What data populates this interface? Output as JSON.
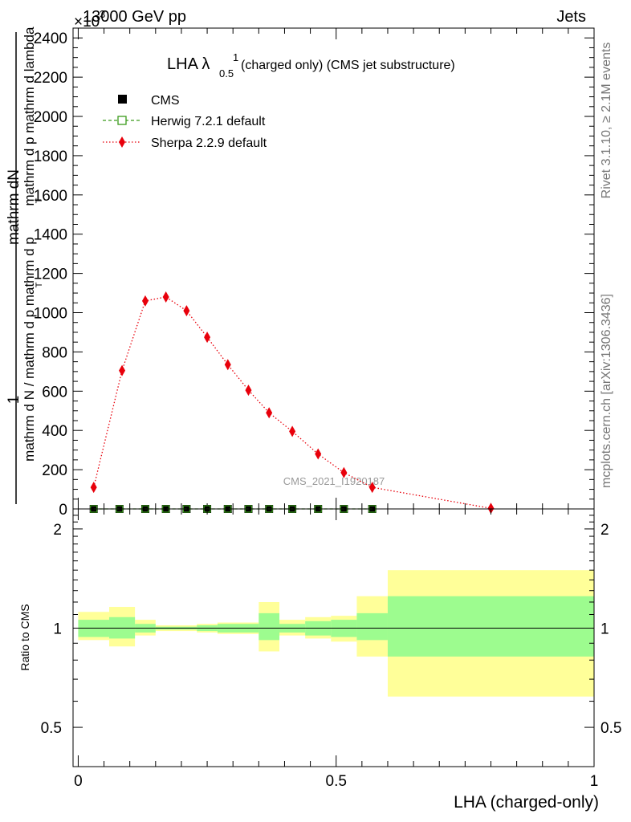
{
  "header": {
    "left": "13000 GeV pp",
    "right": "Jets",
    "exponent": "×10",
    "exponent_power": "3"
  },
  "side_labels": {
    "rivet": "Rivet 3.1.10, ≥ 2.1M events",
    "mcplots": "mcplots.cern.ch [arXiv:1306.3436]"
  },
  "watermark": "CMS_2021_I1920187",
  "chart_data": [
    {
      "type": "line",
      "title": "LHA λ",
      "title_sup": "1",
      "title_sub": "0.5",
      "title_suffix": "(charged only) (CMS jet substructure)",
      "ylabel_top": "mathrm dN",
      "ylabel_bottom": "mathrm d p mathrm d lambda",
      "ylabel_one": "1",
      "ylabel_denominator": "mathrm d N / mathrm d p mathrm d p",
      "ylabel_sub": "T",
      "ylabel_sub2": "T",
      "ylim": [
        0,
        2450
      ],
      "xlim": [
        -0.01,
        1.0
      ],
      "yticks": [
        0,
        200,
        400,
        600,
        800,
        1000,
        1200,
        1400,
        1600,
        1800,
        2000,
        2200,
        2400
      ],
      "ytick_labels": [
        "0",
        "200",
        "400",
        "600",
        "800",
        "1000",
        "1200",
        "1400",
        "1600",
        "1800",
        "2000",
        "2200",
        "2400"
      ],
      "legend_position": "top-left",
      "series": [
        {
          "name": "CMS",
          "color": "#000000",
          "marker": "square",
          "x": [
            0.03,
            0.08,
            0.13,
            0.17,
            0.21,
            0.25,
            0.29,
            0.33,
            0.37,
            0.415,
            0.465,
            0.515,
            0.57
          ],
          "y": [
            0,
            0,
            0,
            0,
            0,
            0,
            0,
            0,
            0,
            0,
            0,
            0,
            0
          ]
        },
        {
          "name": "Herwig 7.2.1 default",
          "color": "#3a9a1a",
          "marker": "open-square",
          "line": "dashed",
          "x": [
            0.03,
            0.08,
            0.13,
            0.17,
            0.21,
            0.25,
            0.29,
            0.33,
            0.37,
            0.415,
            0.465,
            0.515,
            0.57
          ],
          "y": [
            0,
            0,
            0,
            0,
            0,
            0,
            0,
            0,
            0,
            0,
            0,
            0,
            0
          ]
        },
        {
          "name": "Sherpa 2.2.9 default",
          "color": "#e8000b",
          "marker": "diamond",
          "line": "dotted",
          "x": [
            0.03,
            0.085,
            0.13,
            0.17,
            0.21,
            0.25,
            0.29,
            0.33,
            0.37,
            0.415,
            0.465,
            0.515,
            0.57,
            0.8
          ],
          "y": [
            110,
            705,
            1060,
            1080,
            1010,
            875,
            735,
            605,
            490,
            395,
            280,
            185,
            110,
            3
          ]
        }
      ]
    },
    {
      "type": "area",
      "ylabel": "Ratio to CMS",
      "xlabel": "LHA (charged-only)",
      "ylim": [
        0.38,
        2.3
      ],
      "xlim": [
        -0.01,
        1.0
      ],
      "xticks": [
        0,
        0.5,
        1
      ],
      "xtick_labels": [
        "0",
        "0.5",
        "1"
      ],
      "yticks": [
        0.5,
        1,
        2
      ],
      "ytick_labels": [
        "0.5",
        "1",
        "2"
      ],
      "reference_line": 1,
      "band_colors": {
        "inner": "#9dfc8f",
        "outer": "#ffff99"
      },
      "bins": [
        {
          "lo": 0.0,
          "hi": 0.06,
          "inner": [
            0.94,
            1.06
          ],
          "outer": [
            0.92,
            1.12
          ]
        },
        {
          "lo": 0.06,
          "hi": 0.11,
          "inner": [
            0.93,
            1.08
          ],
          "outer": [
            0.88,
            1.16
          ]
        },
        {
          "lo": 0.11,
          "hi": 0.15,
          "inner": [
            0.97,
            1.03
          ],
          "outer": [
            0.95,
            1.06
          ]
        },
        {
          "lo": 0.15,
          "hi": 0.19,
          "inner": [
            0.99,
            1.01
          ],
          "outer": [
            0.98,
            1.02
          ]
        },
        {
          "lo": 0.19,
          "hi": 0.23,
          "inner": [
            0.99,
            1.01
          ],
          "outer": [
            0.98,
            1.02
          ]
        },
        {
          "lo": 0.23,
          "hi": 0.27,
          "inner": [
            0.98,
            1.02
          ],
          "outer": [
            0.97,
            1.03
          ]
        },
        {
          "lo": 0.27,
          "hi": 0.35,
          "inner": [
            0.97,
            1.03
          ],
          "outer": [
            0.96,
            1.04
          ]
        },
        {
          "lo": 0.35,
          "hi": 0.39,
          "inner": [
            0.92,
            1.11
          ],
          "outer": [
            0.85,
            1.2
          ]
        },
        {
          "lo": 0.39,
          "hi": 0.44,
          "inner": [
            0.97,
            1.03
          ],
          "outer": [
            0.95,
            1.06
          ]
        },
        {
          "lo": 0.44,
          "hi": 0.49,
          "inner": [
            0.95,
            1.05
          ],
          "outer": [
            0.93,
            1.08
          ]
        },
        {
          "lo": 0.49,
          "hi": 0.54,
          "inner": [
            0.94,
            1.06
          ],
          "outer": [
            0.91,
            1.09
          ]
        },
        {
          "lo": 0.54,
          "hi": 0.6,
          "inner": [
            0.92,
            1.11
          ],
          "outer": [
            0.82,
            1.25
          ]
        },
        {
          "lo": 0.6,
          "hi": 1.0,
          "inner": [
            0.82,
            1.25
          ],
          "outer": [
            0.62,
            1.5
          ]
        }
      ]
    }
  ]
}
